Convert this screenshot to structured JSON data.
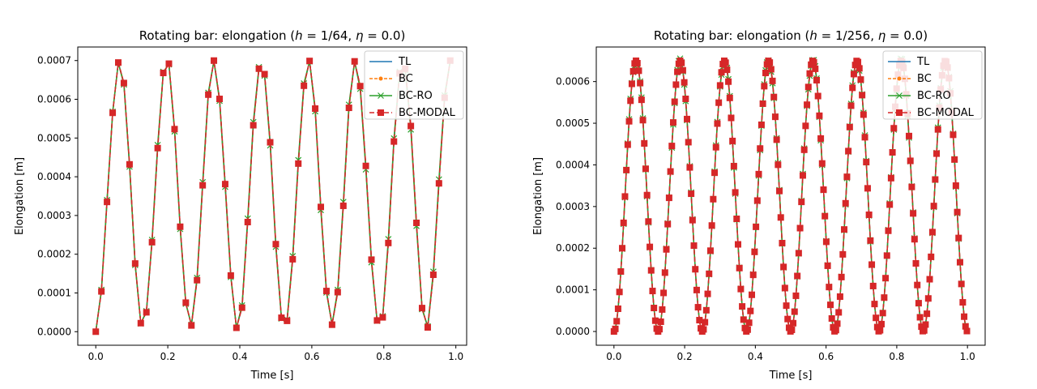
{
  "colors": {
    "TL": "#1f77b4",
    "BC": "#ff7f0e",
    "BC-RO": "#2ca02c",
    "BC-MODAL": "#d62728"
  },
  "chart_data": [
    {
      "type": "line",
      "title": "Rotating bar: elongation (h = 1/64, η = 0.0)",
      "title_parts": {
        "prefix": "Rotating bar: elongation (",
        "h": "h",
        "eq1": " = 1/64, ",
        "eta": "η",
        "eq2": " = 0.0)"
      },
      "xlabel": "Time [s]",
      "ylabel": "Elongation [m]",
      "xlim": [
        -0.05,
        1.03
      ],
      "ylim": [
        -3.5e-05,
        0.000735
      ],
      "xticks": [
        0.0,
        0.2,
        0.4,
        0.6,
        0.8,
        1.0
      ],
      "xtick_labels": [
        "0.0",
        "0.2",
        "0.4",
        "0.6",
        "0.8",
        "1.0"
      ],
      "yticks": [
        0,
        0.0001,
        0.0002,
        0.0003,
        0.0004,
        0.0005,
        0.0006,
        0.0007
      ],
      "ytick_labels": [
        "0.0000",
        "0.0001",
        "0.0002",
        "0.0003",
        "0.0004",
        "0.0005",
        "0.0006",
        "0.0007"
      ],
      "legend_position": "top-right",
      "legend": [
        "TL",
        "BC",
        "BC-RO",
        "BC-MODAL"
      ],
      "x": [
        0.0,
        0.0156,
        0.0312,
        0.0469,
        0.0625,
        0.0781,
        0.0938,
        0.1094,
        0.125,
        0.1406,
        0.1562,
        0.1719,
        0.1875,
        0.2031,
        0.2188,
        0.2344,
        0.25,
        0.2656,
        0.2812,
        0.2969,
        0.3125,
        0.3281,
        0.3438,
        0.3594,
        0.375,
        0.3906,
        0.4062,
        0.4219,
        0.4375,
        0.4531,
        0.4688,
        0.4844,
        0.5,
        0.5156,
        0.5312,
        0.5469,
        0.5625,
        0.5781,
        0.5938,
        0.6094,
        0.625,
        0.6406,
        0.6562,
        0.6719,
        0.6875,
        0.7031,
        0.7188,
        0.7344,
        0.75,
        0.7656,
        0.7812,
        0.7969,
        0.8125,
        0.8281,
        0.8438,
        0.8594,
        0.875,
        0.8906,
        0.9062,
        0.9219,
        0.9375,
        0.9531,
        0.9688,
        0.9844
      ],
      "series": [
        {
          "name": "TL",
          "values": [
            0.0,
            0.000104,
            0.000335,
            0.000565,
            0.000695,
            0.000642,
            0.000432,
            0.000176,
            2.2e-05,
            5e-05,
            0.000231,
            0.000474,
            0.000668,
            0.000692,
            0.000523,
            0.000271,
            7.5e-05,
            1.6e-05,
            0.000133,
            0.000378,
            0.000612,
            0.0007,
            0.000601,
            0.000381,
            0.000145,
            1e-05,
            6.2e-05,
            0.000283,
            0.000533,
            0.000679,
            0.000665,
            0.000489,
            0.000226,
            3.6e-05,
            2.8e-05,
            0.000187,
            0.000434,
            0.000635,
            0.000699,
            0.000576,
            0.000322,
            0.000105,
            1.8e-05,
            0.000102,
            0.000325,
            0.000578,
            0.000698,
            0.000634,
            0.000428,
            0.000186,
            2.9e-05,
            3.7e-05,
            0.000229,
            0.000491,
            0.000667,
            0.000679,
            0.000531,
            0.000281,
            6.1e-05,
            1.1e-05,
            0.000147,
            0.000383,
            0.000604,
            0.0007
          ]
        },
        {
          "name": "BC",
          "values": [
            0.0,
            0.000104,
            0.000335,
            0.000565,
            0.000695,
            0.000642,
            0.000432,
            0.000176,
            2.2e-05,
            5e-05,
            0.000231,
            0.000474,
            0.000668,
            0.000692,
            0.000523,
            0.000271,
            7.5e-05,
            1.6e-05,
            0.000133,
            0.000378,
            0.000612,
            0.0007,
            0.000601,
            0.000381,
            0.000145,
            1e-05,
            6.2e-05,
            0.000283,
            0.000533,
            0.000679,
            0.000665,
            0.000489,
            0.000226,
            3.6e-05,
            2.8e-05,
            0.000187,
            0.000434,
            0.000635,
            0.000699,
            0.000576,
            0.000322,
            0.000105,
            1.8e-05,
            0.000102,
            0.000325,
            0.000578,
            0.000698,
            0.000634,
            0.000428,
            0.000186,
            2.9e-05,
            3.7e-05,
            0.000229,
            0.000491,
            0.000667,
            0.000679,
            0.000531,
            0.000281,
            6.1e-05,
            1.1e-05,
            0.000147,
            0.000383,
            0.000604,
            0.0007
          ]
        },
        {
          "name": "BC-RO",
          "values": [
            0.0,
            0.000108,
            0.00034,
            0.000568,
            0.000694,
            0.000638,
            0.000426,
            0.000172,
            2.1e-05,
            5.3e-05,
            0.000237,
            0.000482,
            0.000671,
            0.00069,
            0.000517,
            0.000265,
            7.2e-05,
            1.8e-05,
            0.000139,
            0.000386,
            0.000617,
            0.000699,
            0.000596,
            0.000374,
            0.000141,
            1e-05,
            6.8e-05,
            0.000292,
            0.000541,
            0.000683,
            0.000661,
            0.000481,
            0.000219,
            3.4e-05,
            3.1e-05,
            0.000195,
            0.000443,
            0.000641,
            0.000698,
            0.000569,
            0.000314,
            0.000101,
            1.9e-05,
            0.000108,
            0.000335,
            0.000586,
            0.000697,
            0.000627,
            0.000419,
            0.000179,
            2.8e-05,
            4e-05,
            0.000239,
            0.000499,
            0.000671,
            0.000675,
            0.000522,
            0.000273,
            5.8e-05,
            1.4e-05,
            0.000155,
            0.000393,
            0.00061,
            0.000699
          ]
        },
        {
          "name": "BC-MODAL",
          "values": [
            0.0,
            0.000104,
            0.000335,
            0.000565,
            0.000695,
            0.000642,
            0.000432,
            0.000176,
            2.2e-05,
            5e-05,
            0.000231,
            0.000474,
            0.000668,
            0.000692,
            0.000523,
            0.000271,
            7.5e-05,
            1.6e-05,
            0.000133,
            0.000378,
            0.000612,
            0.0007,
            0.000601,
            0.000381,
            0.000145,
            1e-05,
            6.2e-05,
            0.000283,
            0.000533,
            0.000679,
            0.000665,
            0.000489,
            0.000226,
            3.6e-05,
            2.8e-05,
            0.000187,
            0.000434,
            0.000635,
            0.000699,
            0.000576,
            0.000322,
            0.000105,
            1.8e-05,
            0.000102,
            0.000325,
            0.000578,
            0.000698,
            0.000634,
            0.000428,
            0.000186,
            2.9e-05,
            3.7e-05,
            0.000229,
            0.000491,
            0.000667,
            0.000679,
            0.000531,
            0.000281,
            6.1e-05,
            1.1e-05,
            0.000147,
            0.000383,
            0.000604,
            0.0007
          ]
        }
      ]
    },
    {
      "type": "line",
      "title": "Rotating bar: elongation (h = 1/256, η = 0.0)",
      "title_parts": {
        "prefix": "Rotating bar: elongation (",
        "h": "h",
        "eq1": " = 1/256, ",
        "eta": "η",
        "eq2": " = 0.0)"
      },
      "xlabel": "Time [s]",
      "ylabel": "Elongation [m]",
      "xlim": [
        -0.05,
        1.05
      ],
      "ylim": [
        -3.3e-05,
        0.000683
      ],
      "xticks": [
        0.0,
        0.2,
        0.4,
        0.6,
        0.8,
        1.0
      ],
      "xtick_labels": [
        "0.0",
        "0.2",
        "0.4",
        "0.6",
        "0.8",
        "1.0"
      ],
      "yticks": [
        0,
        0.0001,
        0.0002,
        0.0003,
        0.0004,
        0.0005,
        0.0006
      ],
      "ytick_labels": [
        "0.0000",
        "0.0001",
        "0.0002",
        "0.0003",
        "0.0004",
        "0.0005",
        "0.0006"
      ],
      "legend_position": "top-right",
      "legend": [
        "TL",
        "BC",
        "BC-RO",
        "BC-MODAL"
      ],
      "sampling": {
        "t_start": 0.0,
        "t_step": 0.0039,
        "t_end": 1.0
      },
      "signal": {
        "amplitude": 0.00065,
        "period": 0.125,
        "form": "half-amplitude cosine oscillation about 0.000325, starting at 0"
      },
      "series": [
        {
          "name": "TL"
        },
        {
          "name": "BC"
        },
        {
          "name": "BC-RO"
        },
        {
          "name": "BC-MODAL"
        }
      ]
    }
  ]
}
